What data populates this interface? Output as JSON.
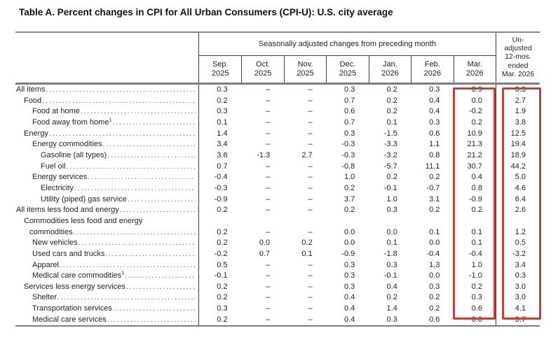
{
  "title": "Table A. Percent changes in CPI for All Urban Consumers (CPI-U): U.S. city average",
  "table": {
    "group_header": "Seasonally adjusted changes from preceding month",
    "unadjusted_header_lines": [
      "Un-",
      "adjusted",
      "12-mos.",
      "ended",
      "Mar. 2026"
    ],
    "month_columns": [
      {
        "month": "Sep.",
        "year": "2025"
      },
      {
        "month": "Oct.",
        "year": "2025"
      },
      {
        "month": "Nov.",
        "year": "2025"
      },
      {
        "month": "Dec.",
        "year": "2025"
      },
      {
        "month": "Jan.",
        "year": "2026"
      },
      {
        "month": "Feb.",
        "year": "2026"
      },
      {
        "month": "Mar.",
        "year": "2026"
      }
    ],
    "highlight_color": "#c2403c",
    "highlighted_columns": [
      "Mar. 2026",
      "Unadjusted 12-mos. ended Mar. 2026"
    ],
    "rows": [
      {
        "label": "All items",
        "indent": 0,
        "values": [
          "0.3",
          "–",
          "–",
          "0.3",
          "0.2",
          "0.3",
          "0.9",
          "3.3"
        ]
      },
      {
        "label": "Food",
        "indent": 1,
        "values": [
          "0.2",
          "–",
          "–",
          "0.7",
          "0.2",
          "0.4",
          "0.0",
          "2.7"
        ]
      },
      {
        "label": "Food at home",
        "indent": 2,
        "values": [
          "0.3",
          "–",
          "–",
          "0.6",
          "0.2",
          "0.4",
          "-0.2",
          "1.9"
        ]
      },
      {
        "label": "Food away from home",
        "sup": "1",
        "indent": 2,
        "values": [
          "0.1",
          "–",
          "–",
          "0.7",
          "0.1",
          "0.3",
          "0.2",
          "3.8"
        ]
      },
      {
        "label": "Energy",
        "indent": 1,
        "values": [
          "1.4",
          "–",
          "–",
          "0.3",
          "-1.5",
          "0.6",
          "10.9",
          "12.5"
        ]
      },
      {
        "label": "Energy commodities",
        "indent": 2,
        "values": [
          "3.4",
          "–",
          "–",
          "-0.3",
          "-3.3",
          "1.1",
          "21.3",
          "19.4"
        ]
      },
      {
        "label": "Gasoline (all types)",
        "indent": 3,
        "values": [
          "3.6",
          "-1.3",
          "2.7",
          "-0.3",
          "-3.2",
          "0.8",
          "21.2",
          "18.9"
        ]
      },
      {
        "label": "Fuel oil",
        "indent": 3,
        "values": [
          "0.7",
          "–",
          "–",
          "-0.8",
          "-5.7",
          "11.1",
          "30.7",
          "44.2"
        ]
      },
      {
        "label": "Energy services",
        "indent": 2,
        "values": [
          "-0.4",
          "–",
          "–",
          "1.0",
          "0.2",
          "0.2",
          "0.4",
          "5.0"
        ]
      },
      {
        "label": "Electricity",
        "indent": 3,
        "values": [
          "-0.3",
          "–",
          "–",
          "0.2",
          "-0.1",
          "-0.7",
          "0.8",
          "4.6"
        ]
      },
      {
        "label": "Utility (piped) gas service",
        "indent": 3,
        "values": [
          "-0.9",
          "–",
          "–",
          "3.7",
          "1.0",
          "3.1",
          "-0.9",
          "6.4"
        ]
      },
      {
        "label": "All items less food and energy",
        "indent": 0,
        "values": [
          "0.2",
          "–",
          "–",
          "0.2",
          "0.3",
          "0.2",
          "0.2",
          "2.6"
        ]
      },
      {
        "label": "Commodities less food and energy",
        "label2": "commodities",
        "indent": 1,
        "values": [
          "0.2",
          "–",
          "–",
          "0.0",
          "0.0",
          "0.1",
          "0.1",
          "1.2"
        ]
      },
      {
        "label": "New vehicles",
        "indent": 2,
        "values": [
          "0.2",
          "0.0",
          "0.2",
          "0.0",
          "0.1",
          "0.0",
          "0.1",
          "0.5"
        ]
      },
      {
        "label": "Used cars and trucks",
        "indent": 2,
        "values": [
          "-0.2",
          "0.7",
          "0.1",
          "-0.9",
          "-1.8",
          "-0.4",
          "-0.4",
          "-3.2"
        ]
      },
      {
        "label": "Apparel",
        "indent": 2,
        "values": [
          "0.5",
          "–",
          "–",
          "0.3",
          "0.3",
          "1.3",
          "1.0",
          "3.4"
        ]
      },
      {
        "label": "Medical care commodities",
        "sup": "1",
        "indent": 2,
        "values": [
          "-0.1",
          "–",
          "–",
          "0.3",
          "-0.1",
          "0.0",
          "-1.0",
          "0.3"
        ]
      },
      {
        "label": "Services less energy services",
        "indent": 1,
        "values": [
          "0.2",
          "–",
          "–",
          "0.3",
          "0.4",
          "0.3",
          "0.2",
          "3.0"
        ]
      },
      {
        "label": "Shelter",
        "indent": 2,
        "values": [
          "0.2",
          "–",
          "–",
          "0.4",
          "0.2",
          "0.2",
          "0.3",
          "3.0"
        ]
      },
      {
        "label": "Transportation services",
        "indent": 2,
        "values": [
          "0.3",
          "–",
          "–",
          "0.4",
          "1.4",
          "0.2",
          "0.6",
          "4.1"
        ]
      },
      {
        "label": "Medical care services",
        "indent": 2,
        "values": [
          "0.2",
          "–",
          "–",
          "0.4",
          "0.3",
          "0.6",
          "0.0",
          "3.7"
        ]
      }
    ]
  }
}
